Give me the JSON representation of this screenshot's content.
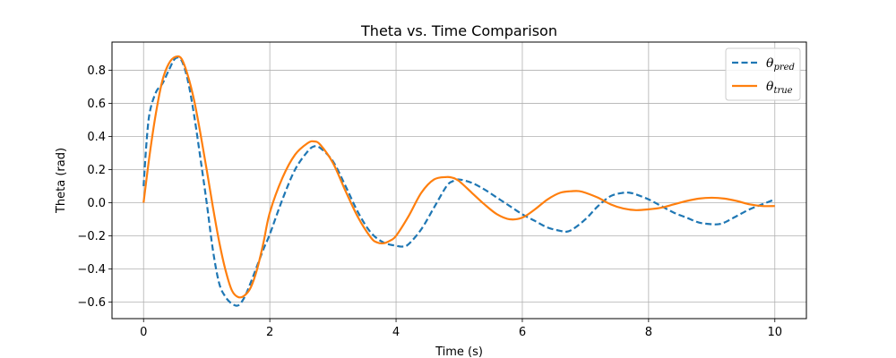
{
  "chart_data": {
    "type": "line",
    "title": "Theta vs. Time Comparison",
    "xlabel": "Time (s)",
    "ylabel": "Theta (rad)",
    "xlim": [
      -0.5,
      10.5
    ],
    "ylim": [
      -0.7,
      0.97
    ],
    "xticks": [
      0,
      2,
      4,
      6,
      8,
      10
    ],
    "xtick_labels": [
      "0",
      "2",
      "4",
      "6",
      "8",
      "10"
    ],
    "yticks": [
      -0.6,
      -0.4,
      -0.2,
      0.0,
      0.2,
      0.4,
      0.6,
      0.8
    ],
    "ytick_labels": [
      "−0.6",
      "−0.4",
      "−0.2",
      "0.0",
      "0.2",
      "0.4",
      "0.6",
      "0.8"
    ],
    "grid": true,
    "legend_position": "top-right",
    "series": [
      {
        "name": "θ",
        "name_sub": "pred",
        "style": "dashed",
        "color": "#1f77b4",
        "x": [
          0,
          0.05,
          0.1,
          0.2,
          0.3,
          0.4,
          0.5,
          0.6,
          0.7,
          0.8,
          0.9,
          1.0,
          1.1,
          1.2,
          1.3,
          1.4,
          1.5,
          1.6,
          1.7,
          1.8,
          1.9,
          2.0,
          2.2,
          2.4,
          2.6,
          2.7,
          2.8,
          3.0,
          3.2,
          3.4,
          3.6,
          3.8,
          4.0,
          4.1,
          4.2,
          4.4,
          4.6,
          4.8,
          4.9,
          5.0,
          5.2,
          5.4,
          5.6,
          5.8,
          6.0,
          6.2,
          6.4,
          6.6,
          6.7,
          6.8,
          7.0,
          7.2,
          7.4,
          7.6,
          7.7,
          7.8,
          8.0,
          8.2,
          8.4,
          8.6,
          8.8,
          9.0,
          9.1,
          9.2,
          9.4,
          9.6,
          9.8,
          10.0
        ],
        "y": [
          0.1,
          0.38,
          0.55,
          0.67,
          0.72,
          0.8,
          0.87,
          0.86,
          0.74,
          0.53,
          0.27,
          0.0,
          -0.29,
          -0.49,
          -0.57,
          -0.61,
          -0.62,
          -0.57,
          -0.48,
          -0.38,
          -0.28,
          -0.19,
          0.02,
          0.2,
          0.31,
          0.34,
          0.33,
          0.25,
          0.1,
          -0.06,
          -0.18,
          -0.24,
          -0.26,
          -0.265,
          -0.25,
          -0.16,
          -0.03,
          0.1,
          0.13,
          0.14,
          0.12,
          0.08,
          0.03,
          -0.02,
          -0.07,
          -0.11,
          -0.15,
          -0.17,
          -0.175,
          -0.16,
          -0.1,
          -0.02,
          0.04,
          0.06,
          0.06,
          0.05,
          0.02,
          -0.02,
          -0.06,
          -0.09,
          -0.12,
          -0.13,
          -0.13,
          -0.12,
          -0.08,
          -0.04,
          -0.01,
          0.02
        ]
      },
      {
        "name": "θ",
        "name_sub": "true",
        "style": "solid",
        "color": "#ff7f0e",
        "x": [
          0,
          0.1,
          0.2,
          0.3,
          0.4,
          0.5,
          0.6,
          0.7,
          0.8,
          0.9,
          1.0,
          1.1,
          1.2,
          1.3,
          1.4,
          1.5,
          1.6,
          1.7,
          1.8,
          1.9,
          2.0,
          2.2,
          2.4,
          2.6,
          2.7,
          2.8,
          3.0,
          3.2,
          3.4,
          3.6,
          3.7,
          3.8,
          3.9,
          4.0,
          4.2,
          4.4,
          4.6,
          4.8,
          4.9,
          5.0,
          5.2,
          5.4,
          5.6,
          5.8,
          6.0,
          6.2,
          6.4,
          6.6,
          6.8,
          6.9,
          7.0,
          7.2,
          7.4,
          7.6,
          7.8,
          8.0,
          8.2,
          8.4,
          8.6,
          8.8,
          9.0,
          9.2,
          9.4,
          9.6,
          9.8,
          10.0
        ],
        "y": [
          0.0,
          0.3,
          0.55,
          0.74,
          0.84,
          0.88,
          0.87,
          0.77,
          0.62,
          0.42,
          0.2,
          -0.03,
          -0.24,
          -0.41,
          -0.53,
          -0.57,
          -0.56,
          -0.51,
          -0.4,
          -0.24,
          -0.06,
          0.15,
          0.29,
          0.36,
          0.37,
          0.35,
          0.24,
          0.07,
          -0.09,
          -0.21,
          -0.24,
          -0.245,
          -0.23,
          -0.2,
          -0.08,
          0.06,
          0.14,
          0.155,
          0.15,
          0.13,
          0.06,
          -0.01,
          -0.07,
          -0.1,
          -0.09,
          -0.04,
          0.02,
          0.06,
          0.07,
          0.07,
          0.06,
          0.03,
          -0.01,
          -0.035,
          -0.045,
          -0.04,
          -0.03,
          -0.01,
          0.01,
          0.025,
          0.03,
          0.025,
          0.01,
          -0.01,
          -0.02,
          -0.02
        ]
      }
    ]
  }
}
